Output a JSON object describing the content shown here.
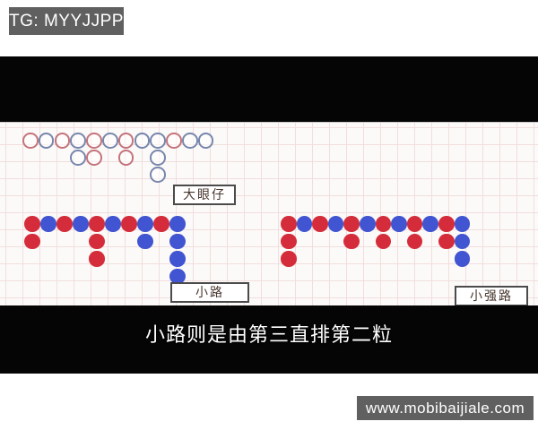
{
  "watermarks": {
    "top": "TG: MYYJJPP",
    "bottom": "www.mobibaijiale.com"
  },
  "subtitle": {
    "text": "小路则是由第三直排第二粒"
  },
  "labels": {
    "big_eye": "大眼仔",
    "small_road": "小路",
    "cockroach": "小强路"
  },
  "colors": {
    "solid_red": "#d42c3a",
    "solid_blue": "#4154d1",
    "hollow_red": "#c4747c",
    "hollow_blue": "#7787ad",
    "grid_line": "#f1dede",
    "label_text": "#47352d",
    "wm_bg": "#606060"
  },
  "roads": {
    "big_eye_boy": {
      "style": "hollow",
      "columns": [
        [
          "r"
        ],
        [
          "b"
        ],
        [
          "r"
        ],
        [
          "b",
          "b"
        ],
        [
          "r",
          "r"
        ],
        [
          "b"
        ],
        [
          "r",
          "r"
        ],
        [
          "b"
        ],
        [
          "b",
          "b",
          "b"
        ],
        [
          "r"
        ],
        [
          "b"
        ],
        [
          "b"
        ]
      ]
    },
    "small_road_left": {
      "style": "solid",
      "columns": [
        [
          "R",
          "R"
        ],
        [
          "B"
        ],
        [
          "R"
        ],
        [
          "B"
        ],
        [
          "R",
          "R",
          "R"
        ],
        [
          "B"
        ],
        [
          "R"
        ],
        [
          "B",
          "B"
        ],
        [
          "R"
        ],
        [
          "B",
          "B",
          "B",
          "B"
        ]
      ]
    },
    "small_road_right": {
      "style": "solid",
      "columns": [
        [
          "R",
          "R",
          "R"
        ],
        [
          "B"
        ],
        [
          "R"
        ],
        [
          "B"
        ],
        [
          "R",
          "R"
        ],
        [
          "B"
        ],
        [
          "R",
          "R"
        ],
        [
          "B"
        ],
        [
          "R",
          "R"
        ],
        [
          "B"
        ],
        [
          "R",
          "R"
        ],
        [
          "B",
          "B",
          "B"
        ]
      ]
    }
  }
}
